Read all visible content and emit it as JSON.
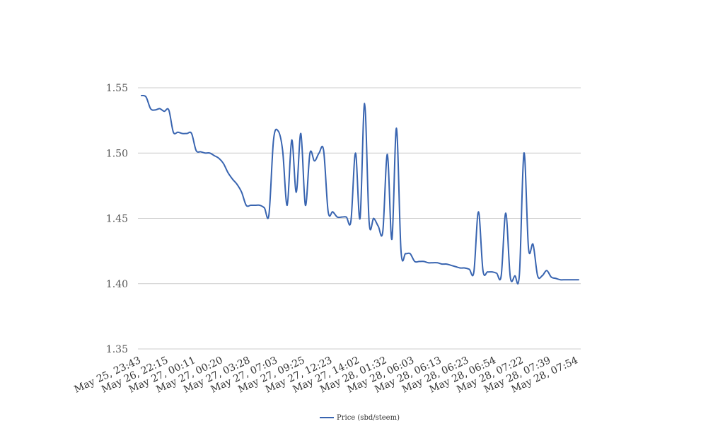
{
  "chart_data": {
    "type": "line",
    "title": "",
    "xlabel": "",
    "ylabel": "",
    "ylim": [
      1.35,
      1.55
    ],
    "yticks": [
      "1.35",
      "1.40",
      "1.45",
      "1.50",
      "1.55"
    ],
    "xtick_labels": [
      "May 25, 23:43",
      "May 26, 22:15",
      "May 27, 00:11",
      "May 27, 00:20",
      "May 27, 03:28",
      "May 27, 07:03",
      "May 27, 09:25",
      "May 27, 12:23",
      "May 27, 14:02",
      "May 28, 01:32",
      "May 28, 06:03",
      "May 28, 06:13",
      "May 28, 06:23",
      "May 28, 06:54",
      "May 28, 07:22",
      "May 28, 07:39",
      "May 28, 07:54"
    ],
    "grid": true,
    "legend_position": "bottom",
    "series": [
      {
        "name": "Price (sbd/steem)",
        "color": "#3864b0",
        "values": [
          1.544,
          1.543,
          1.534,
          1.533,
          1.534,
          1.532,
          1.533,
          1.516,
          1.516,
          1.515,
          1.515,
          1.515,
          1.502,
          1.501,
          1.5,
          1.5,
          1.498,
          1.496,
          1.492,
          1.485,
          1.48,
          1.476,
          1.47,
          1.46,
          1.46,
          1.46,
          1.46,
          1.458,
          1.453,
          1.51,
          1.517,
          1.502,
          1.46,
          1.51,
          1.47,
          1.515,
          1.46,
          1.5,
          1.494,
          1.5,
          1.502,
          1.455,
          1.455,
          1.451,
          1.451,
          1.451,
          1.448,
          1.5,
          1.45,
          1.538,
          1.447,
          1.45,
          1.444,
          1.44,
          1.499,
          1.434,
          1.519,
          1.425,
          1.423,
          1.423,
          1.417,
          1.417,
          1.417,
          1.416,
          1.416,
          1.416,
          1.415,
          1.415,
          1.414,
          1.413,
          1.412,
          1.412,
          1.411,
          1.409,
          1.455,
          1.41,
          1.409,
          1.409,
          1.408,
          1.406,
          1.454,
          1.405,
          1.406,
          1.407,
          1.5,
          1.427,
          1.43,
          1.406,
          1.406,
          1.41,
          1.405,
          1.404,
          1.403,
          1.403,
          1.403,
          1.403,
          1.403
        ]
      }
    ]
  }
}
